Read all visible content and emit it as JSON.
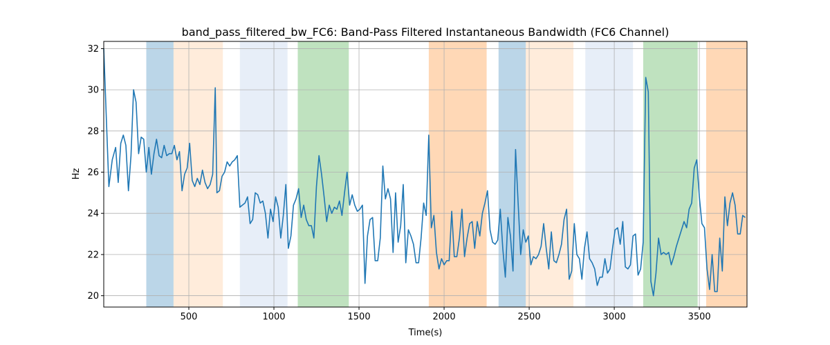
{
  "chart_data": {
    "type": "line",
    "title": "band_pass_filtered_bw_FC6: Band-Pass Filtered Instantaneous Bandwidth (FC6 Channel)",
    "xlabel": "Time(s)",
    "ylabel": "Hz",
    "xlim": [
      0,
      3780
    ],
    "ylim": [
      19.45,
      32.35
    ],
    "xticks": [
      500,
      1000,
      1500,
      2000,
      2500,
      3000,
      3500
    ],
    "yticks": [
      20,
      22,
      24,
      26,
      28,
      30,
      32
    ],
    "grid": true,
    "line_color": "#1f77b4",
    "bands": [
      {
        "start": 250,
        "end": 410,
        "color": "#1f77b4",
        "opacity": 0.3
      },
      {
        "start": 410,
        "end": 700,
        "color": "#ff7f0e",
        "opacity": 0.15
      },
      {
        "start": 800,
        "end": 1080,
        "color": "#aec7e8",
        "opacity": 0.3
      },
      {
        "start": 1140,
        "end": 1440,
        "color": "#2ca02c",
        "opacity": 0.3
      },
      {
        "start": 1910,
        "end": 2250,
        "color": "#ff7f0e",
        "opacity": 0.3
      },
      {
        "start": 2320,
        "end": 2480,
        "color": "#1f77b4",
        "opacity": 0.3
      },
      {
        "start": 2480,
        "end": 2760,
        "color": "#ff7f0e",
        "opacity": 0.15
      },
      {
        "start": 2830,
        "end": 3110,
        "color": "#aec7e8",
        "opacity": 0.3
      },
      {
        "start": 3170,
        "end": 3490,
        "color": "#2ca02c",
        "opacity": 0.3
      },
      {
        "start": 3540,
        "end": 3780,
        "color": "#ff7f0e",
        "opacity": 0.3
      }
    ],
    "series": [
      {
        "x": [
          0,
          30,
          50,
          70,
          85,
          100,
          115,
          130,
          145,
          160,
          175,
          190,
          205,
          220,
          235,
          250,
          265,
          280,
          295,
          310,
          325,
          340,
          355,
          370,
          385,
          400,
          415,
          430,
          445,
          460,
          475,
          490,
          505,
          520,
          535,
          550,
          565,
          580,
          595,
          610,
          625,
          640,
          655,
          665,
          680,
          695,
          710,
          725,
          740,
          755,
          770,
          785,
          800,
          815,
          830,
          845,
          860,
          875,
          890,
          905,
          920,
          935,
          950,
          965,
          980,
          995,
          1010,
          1025,
          1040,
          1055,
          1070,
          1085,
          1100,
          1115,
          1130,
          1145,
          1160,
          1175,
          1190,
          1205,
          1220,
          1235,
          1250,
          1265,
          1280,
          1295,
          1310,
          1325,
          1340,
          1355,
          1370,
          1385,
          1400,
          1415,
          1430,
          1445,
          1460,
          1475,
          1490,
          1505,
          1520,
          1535,
          1550,
          1565,
          1580,
          1595,
          1610,
          1625,
          1640,
          1655,
          1670,
          1685,
          1700,
          1715,
          1730,
          1745,
          1760,
          1775,
          1790,
          1805,
          1820,
          1835,
          1850,
          1865,
          1880,
          1895,
          1910,
          1925,
          1940,
          1955,
          1970,
          1985,
          2000,
          2015,
          2030,
          2045,
          2060,
          2075,
          2090,
          2105,
          2120,
          2135,
          2150,
          2165,
          2180,
          2195,
          2210,
          2225,
          2240,
          2255,
          2270,
          2285,
          2300,
          2315,
          2330,
          2345,
          2360,
          2375,
          2390,
          2405,
          2420,
          2435,
          2450,
          2465,
          2480,
          2495,
          2510,
          2525,
          2540,
          2555,
          2570,
          2585,
          2600,
          2615,
          2630,
          2645,
          2660,
          2675,
          2690,
          2705,
          2720,
          2735,
          2750,
          2765,
          2780,
          2795,
          2810,
          2825,
          2840,
          2855,
          2870,
          2885,
          2900,
          2915,
          2930,
          2945,
          2960,
          2975,
          2990,
          3005,
          3020,
          3035,
          3050,
          3065,
          3080,
          3095,
          3110,
          3125,
          3140,
          3155,
          3170,
          3185,
          3200,
          3215,
          3230,
          3245,
          3260,
          3275,
          3290,
          3305,
          3320,
          3335,
          3350,
          3365,
          3380,
          3395,
          3410,
          3425,
          3440,
          3455,
          3470,
          3485,
          3500,
          3515,
          3530,
          3545,
          3560,
          3575,
          3590,
          3605,
          3620,
          3635,
          3650,
          3665,
          3680,
          3695,
          3710,
          3725,
          3740,
          3755,
          3770
        ],
        "y": [
          32.0,
          25.3,
          26.6,
          27.2,
          25.5,
          27.4,
          27.8,
          27.3,
          25.1,
          26.8,
          30.0,
          29.4,
          26.9,
          27.7,
          27.6,
          26.0,
          27.2,
          25.9,
          26.9,
          27.6,
          26.8,
          26.7,
          27.3,
          26.8,
          26.9,
          26.9,
          27.3,
          26.6,
          27.0,
          25.1,
          25.9,
          26.2,
          27.4,
          25.6,
          25.3,
          25.7,
          25.4,
          26.1,
          25.5,
          25.2,
          25.4,
          25.9,
          30.1,
          25.0,
          25.1,
          25.8,
          26.0,
          26.5,
          26.3,
          26.5,
          26.6,
          26.8,
          24.3,
          24.4,
          24.5,
          24.8,
          23.5,
          23.7,
          25.0,
          24.9,
          24.5,
          24.6,
          24.0,
          22.8,
          24.2,
          23.6,
          24.8,
          24.3,
          22.8,
          23.9,
          25.4,
          22.3,
          22.9,
          24.4,
          24.7,
          25.2,
          23.8,
          24.4,
          23.7,
          23.4,
          23.4,
          22.8,
          25.3,
          26.8,
          25.9,
          24.8,
          23.6,
          24.4,
          24.0,
          24.3,
          24.2,
          24.6,
          23.9,
          25.0,
          26.0,
          24.4,
          24.9,
          24.4,
          24.1,
          24.2,
          24.4,
          20.6,
          22.9,
          23.7,
          23.8,
          21.7,
          21.7,
          22.8,
          26.3,
          24.7,
          25.2,
          24.7,
          22.1,
          25.0,
          22.6,
          23.4,
          25.4,
          21.6,
          23.2,
          22.9,
          22.5,
          21.6,
          21.6,
          22.8,
          24.5,
          23.9,
          27.8,
          23.3,
          23.9,
          22.1,
          21.3,
          21.8,
          21.5,
          21.7,
          21.7,
          24.1,
          21.9,
          21.9,
          22.8,
          24.2,
          21.9,
          22.8,
          23.5,
          23.6,
          22.3,
          23.6,
          22.9,
          24.0,
          24.5,
          25.1,
          23.2,
          22.6,
          22.5,
          22.7,
          24.2,
          22.3,
          20.9,
          23.8,
          22.9,
          21.2,
          27.1,
          24.5,
          22.0,
          23.2,
          22.6,
          22.9,
          21.5,
          21.9,
          21.8,
          22.0,
          22.4,
          23.5,
          22.3,
          21.3,
          23.1,
          21.7,
          21.6,
          22.0,
          22.5,
          23.7,
          24.2,
          20.8,
          21.2,
          23.5,
          22.0,
          21.8,
          20.8,
          22.3,
          23.1,
          21.8,
          21.6,
          21.3,
          20.5,
          20.9,
          20.9,
          21.8,
          21.1,
          21.3,
          22.3,
          23.2,
          23.3,
          22.5,
          23.6,
          21.4,
          21.3,
          21.5,
          22.9,
          23.0,
          21.0,
          21.3,
          22.6,
          30.6,
          29.9,
          20.7,
          20.0,
          21.1,
          22.8,
          22.0,
          22.1,
          22.0,
          22.1,
          21.5,
          21.9,
          22.4,
          22.8,
          23.2,
          23.6,
          23.3,
          24.2,
          24.5,
          26.2,
          26.6,
          24.8,
          23.5,
          23.3,
          21.3,
          20.3,
          22.0,
          20.2,
          20.2,
          22.8,
          21.2,
          24.8,
          23.4,
          24.5,
          25.0,
          24.4,
          23.0,
          23.0,
          23.9,
          23.8
        ]
      }
    ]
  }
}
